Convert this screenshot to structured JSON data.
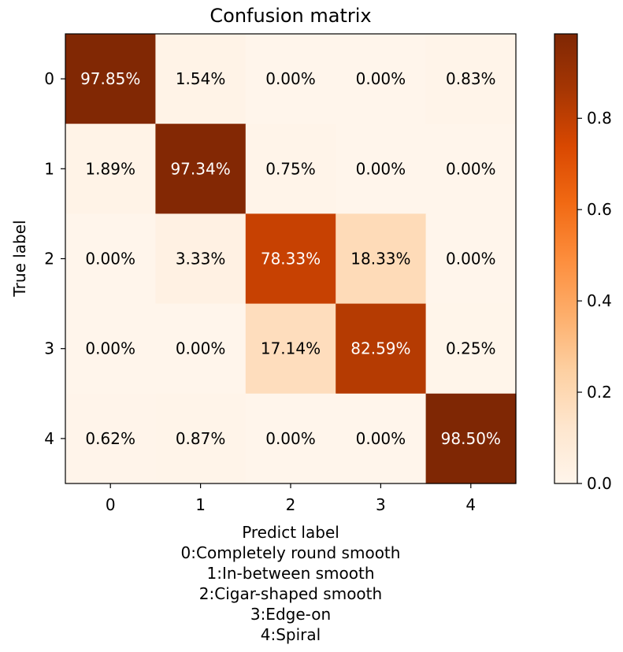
{
  "chart_data": {
    "type": "heatmap",
    "title": "Confusion matrix",
    "ylabel": "True label",
    "xlabel_lines": [
      "Predict label",
      "0:Completely round smooth",
      "1:In-between smooth",
      "2:Cigar-shaped smooth",
      "3:Edge-on",
      "4:Spiral"
    ],
    "x_ticks": [
      "0",
      "1",
      "2",
      "3",
      "4"
    ],
    "y_ticks": [
      "0",
      "1",
      "2",
      "3",
      "4"
    ],
    "values": [
      [
        0.9785,
        0.0154,
        0.0,
        0.0,
        0.0083
      ],
      [
        0.0189,
        0.9734,
        0.0075,
        0.0,
        0.0
      ],
      [
        0.0,
        0.0333,
        0.7833,
        0.1833,
        0.0
      ],
      [
        0.0,
        0.0,
        0.1714,
        0.8259,
        0.0025
      ],
      [
        0.0062,
        0.0087,
        0.0,
        0.0,
        0.985
      ]
    ],
    "cell_labels": [
      [
        "97.85%",
        "1.54%",
        "0.00%",
        "0.00%",
        "0.83%"
      ],
      [
        "1.89%",
        "97.34%",
        "0.75%",
        "0.00%",
        "0.00%"
      ],
      [
        "0.00%",
        "3.33%",
        "78.33%",
        "18.33%",
        "0.00%"
      ],
      [
        "0.00%",
        "0.00%",
        "17.14%",
        "82.59%",
        "0.25%"
      ],
      [
        "0.62%",
        "0.87%",
        "0.00%",
        "0.00%",
        "98.50%"
      ]
    ],
    "colormap": "Oranges",
    "colormap_stops": [
      "#fff5eb",
      "#fee6ce",
      "#fdd0a2",
      "#fdae6b",
      "#fd8d3c",
      "#f16913",
      "#d94801",
      "#a63603",
      "#7f2704"
    ],
    "color_range": [
      0,
      0.985
    ],
    "colorbar_ticks": [
      "0.0",
      "0.2",
      "0.4",
      "0.6",
      "0.8"
    ],
    "colorbar_tick_values": [
      0.0,
      0.2,
      0.4,
      0.6,
      0.8
    ]
  }
}
